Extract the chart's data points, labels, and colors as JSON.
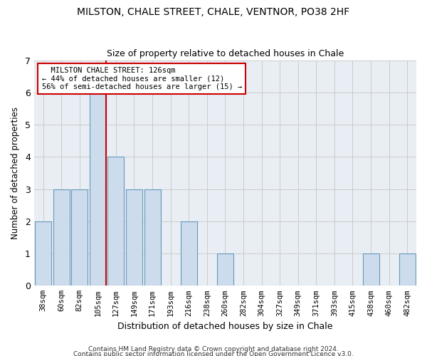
{
  "title": "MILSTON, CHALE STREET, CHALE, VENTNOR, PO38 2HF",
  "subtitle": "Size of property relative to detached houses in Chale",
  "xlabel": "Distribution of detached houses by size in Chale",
  "ylabel": "Number of detached properties",
  "categories": [
    "38sqm",
    "60sqm",
    "82sqm",
    "105sqm",
    "127sqm",
    "149sqm",
    "171sqm",
    "193sqm",
    "216sqm",
    "238sqm",
    "260sqm",
    "282sqm",
    "304sqm",
    "327sqm",
    "349sqm",
    "371sqm",
    "393sqm",
    "415sqm",
    "438sqm",
    "460sqm",
    "482sqm"
  ],
  "values": [
    2,
    3,
    3,
    6,
    4,
    3,
    3,
    0,
    2,
    0,
    1,
    0,
    0,
    0,
    0,
    0,
    0,
    0,
    1,
    0,
    1
  ],
  "bar_color": "#ccdcec",
  "bar_edge_color": "#6699bb",
  "vline_x_index": 3,
  "marker_label": "MILSTON CHALE STREET: 126sqm",
  "marker_pct_smaller": "44% of detached houses are smaller (12)",
  "marker_pct_larger": "56% of semi-detached houses are larger (15)",
  "vline_color": "#cc0000",
  "annotation_box_edge": "#cc0000",
  "ylim": [
    0,
    7
  ],
  "yticks": [
    0,
    1,
    2,
    3,
    4,
    5,
    6,
    7
  ],
  "grid_color": "#cccccc",
  "bg_color": "#e8eef4",
  "footer1": "Contains HM Land Registry data © Crown copyright and database right 2024.",
  "footer2": "Contains public sector information licensed under the Open Government Licence v3.0."
}
